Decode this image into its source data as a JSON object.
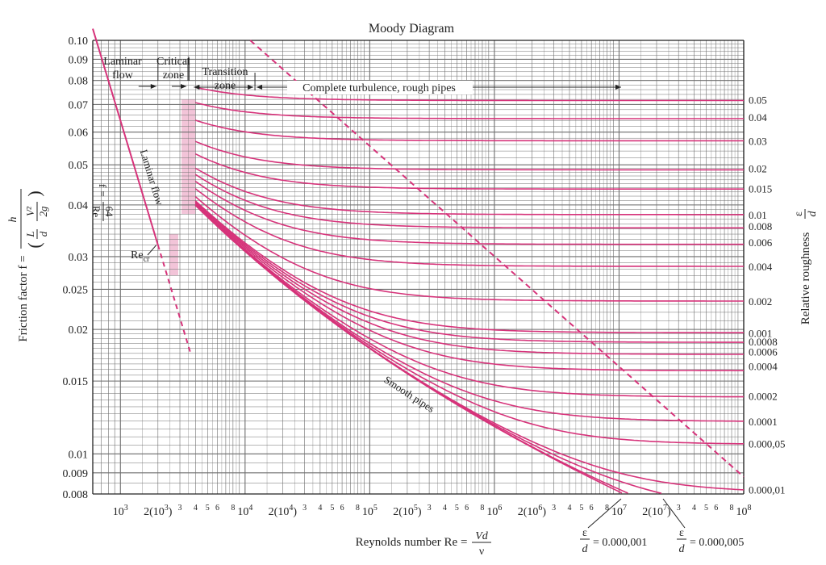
{
  "chart_data": {
    "type": "line",
    "title": "Moody Diagram",
    "xscale": "log",
    "yscale": "log",
    "xlim": [
      600,
      100000000
    ],
    "ylim": [
      0.008,
      0.1
    ],
    "grid": true,
    "y_ticks": [
      {
        "v": 0.1,
        "label": "0.10"
      },
      {
        "v": 0.09,
        "label": "0.09"
      },
      {
        "v": 0.08,
        "label": "0.08"
      },
      {
        "v": 0.07,
        "label": "0.07"
      },
      {
        "v": 0.06,
        "label": "0.06"
      },
      {
        "v": 0.05,
        "label": "0.05"
      },
      {
        "v": 0.04,
        "label": "0.04"
      },
      {
        "v": 0.03,
        "label": "0.03"
      },
      {
        "v": 0.025,
        "label": "0.025"
      },
      {
        "v": 0.02,
        "label": "0.02"
      },
      {
        "v": 0.015,
        "label": "0.015"
      },
      {
        "v": 0.01,
        "label": "0.01"
      },
      {
        "v": 0.009,
        "label": "0.009"
      },
      {
        "v": 0.008,
        "label": "0.008"
      }
    ],
    "x_major_ticks": [
      {
        "v": 1000,
        "label": "10",
        "sup": "3"
      },
      {
        "v": 2000,
        "label": "2(10",
        "sup": "3",
        "tail": ")"
      },
      {
        "v": 10000,
        "label": "10",
        "sup": "4"
      },
      {
        "v": 20000,
        "label": "2(10",
        "sup": "4",
        "tail": ")"
      },
      {
        "v": 100000,
        "label": "10",
        "sup": "5"
      },
      {
        "v": 200000,
        "label": "2(10",
        "sup": "5",
        "tail": ")"
      },
      {
        "v": 1000000,
        "label": "10",
        "sup": "6"
      },
      {
        "v": 2000000,
        "label": "2(10",
        "sup": "6",
        "tail": ")"
      },
      {
        "v": 10000000,
        "label": "10",
        "sup": "7"
      },
      {
        "v": 20000000,
        "label": "2(10",
        "sup": "7",
        "tail": ")"
      },
      {
        "v": 100000000,
        "label": "10",
        "sup": "8"
      }
    ],
    "x_minor_digits": [
      "3",
      "4",
      "5",
      "6",
      "8"
    ],
    "ylabel": "Friction factor f =",
    "ylabel_fraction": {
      "num": "h",
      "den_left": "L",
      "den_mid": "d",
      "den_num": "V²",
      "den_den": "2g"
    },
    "xlabel": "Reynolds number Re =",
    "xlabel_fraction": {
      "num": "Vd",
      "den": "ν"
    },
    "right_axis_label": "Relative roughness",
    "right_axis_fraction": {
      "num": "ε",
      "den": "d"
    },
    "roughness_series": [
      {
        "name": "0.05",
        "eps": 0.05,
        "label_f": 0.0719
      },
      {
        "name": "0.04",
        "eps": 0.04,
        "label_f": 0.0652
      },
      {
        "name": "0.03",
        "eps": 0.03,
        "label_f": 0.0572
      },
      {
        "name": "0.02",
        "eps": 0.02,
        "label_f": 0.049
      },
      {
        "name": "0.015",
        "eps": 0.015,
        "label_f": 0.0438
      },
      {
        "name": "0.01",
        "eps": 0.01,
        "label_f": 0.0379
      },
      {
        "name": "0.008",
        "eps": 0.008,
        "label_f": 0.0356
      },
      {
        "name": "0.006",
        "eps": 0.006,
        "label_f": 0.0325
      },
      {
        "name": "0.004",
        "eps": 0.004,
        "label_f": 0.0284
      },
      {
        "name": "0.002",
        "eps": 0.002,
        "label_f": 0.0234
      },
      {
        "name": "0.001",
        "eps": 0.001,
        "label_f": 0.0196
      },
      {
        "name": "0.0008",
        "eps": 0.0008,
        "label_f": 0.0187
      },
      {
        "name": "0.0006",
        "eps": 0.0006,
        "label_f": 0.0177
      },
      {
        "name": "0.0004",
        "eps": 0.0004,
        "label_f": 0.0163
      },
      {
        "name": "0.0002",
        "eps": 0.0002,
        "label_f": 0.0138
      },
      {
        "name": "0.0001",
        "eps": 0.0001,
        "label_f": 0.012
      },
      {
        "name": "0.000,05",
        "eps": 5e-05,
        "label_f": 0.0106
      },
      {
        "name": "0.000,01",
        "eps": 1e-05,
        "label_f": 0.0082
      }
    ],
    "bottom_roughness_labels": [
      {
        "num": "ε",
        "den": "d",
        "text": "= 0.000,001",
        "eps": 1e-06
      },
      {
        "num": "ε",
        "den": "d",
        "text": "= 0.000,005",
        "eps": 5e-06
      }
    ],
    "annotations": {
      "laminar_flow": [
        "Laminar",
        "flow"
      ],
      "critical_zone": [
        "Critical",
        "zone"
      ],
      "transition_zone": [
        "Transition",
        "zone"
      ],
      "complete_turbulence": "Complete turbulence, rough pipes",
      "laminar_line_label": "Laminar flow",
      "laminar_formula": "f = 64/Re",
      "formula_f": "f",
      "formula_num": "64",
      "formula_den": "Re",
      "recr": "Re",
      "recr_sub": "cr",
      "smooth_pipes": "Smooth pipes"
    },
    "colors": {
      "curve": "#d6337a",
      "grid": "#6e6e6e",
      "shade": "#f2c4d8",
      "axis": "#222222"
    }
  }
}
